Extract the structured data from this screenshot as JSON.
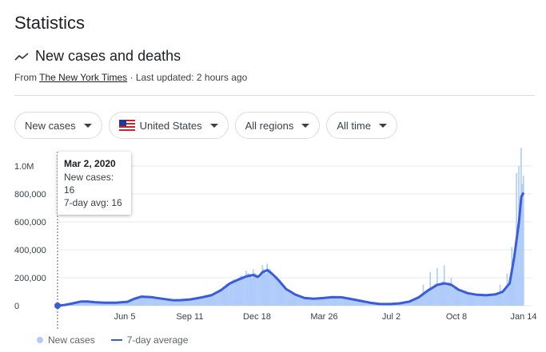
{
  "header": {
    "title": "Statistics"
  },
  "section": {
    "title": "New cases and deaths",
    "source_prefix": "From ",
    "source_name": "The New York Times",
    "updated": " · Last updated: 2 hours ago"
  },
  "filters": {
    "metric": "New cases",
    "country": "United States",
    "regions": "All regions",
    "time": "All time"
  },
  "tooltip": {
    "date": "Mar 2, 2020",
    "new_cases": "New cases: 16",
    "avg": "7-day avg: 16"
  },
  "legend": {
    "bars": "New cases",
    "line": "7-day average"
  },
  "colors": {
    "bars": "#aecbfa",
    "line": "#3b5bdb",
    "grid": "#e8eaed"
  },
  "chart_data": {
    "type": "bar",
    "title": "",
    "xlabel": "",
    "ylabel": "",
    "ylim": [
      0,
      1000000
    ],
    "y_ticks": [
      "0",
      "200,000",
      "400,000",
      "600,000",
      "800,000",
      "1.0M"
    ],
    "x_ticks": [
      "Jun 5",
      "Sep 11",
      "Dec 18",
      "Mar 26",
      "Jul 2",
      "Oct 8",
      "Jan 14"
    ],
    "series": [
      {
        "name": "7-day average",
        "points": [
          [
            0,
            0
          ],
          [
            3,
            5000
          ],
          [
            6,
            15000
          ],
          [
            10,
            30000
          ],
          [
            13,
            30000
          ],
          [
            16,
            25000
          ],
          [
            20,
            22000
          ],
          [
            25,
            22000
          ],
          [
            30,
            28000
          ],
          [
            33,
            50000
          ],
          [
            36,
            65000
          ],
          [
            40,
            62000
          ],
          [
            45,
            50000
          ],
          [
            50,
            38000
          ],
          [
            53,
            40000
          ],
          [
            57,
            45000
          ],
          [
            62,
            60000
          ],
          [
            66,
            75000
          ],
          [
            70,
            110000
          ],
          [
            74,
            160000
          ],
          [
            78,
            190000
          ],
          [
            81,
            210000
          ],
          [
            84,
            220000
          ],
          [
            86,
            205000
          ],
          [
            88,
            240000
          ],
          [
            90,
            255000
          ],
          [
            92,
            230000
          ],
          [
            95,
            180000
          ],
          [
            98,
            120000
          ],
          [
            102,
            80000
          ],
          [
            106,
            55000
          ],
          [
            110,
            50000
          ],
          [
            114,
            55000
          ],
          [
            118,
            62000
          ],
          [
            122,
            60000
          ],
          [
            126,
            48000
          ],
          [
            130,
            35000
          ],
          [
            134,
            22000
          ],
          [
            138,
            13000
          ],
          [
            143,
            12000
          ],
          [
            147,
            17000
          ],
          [
            151,
            30000
          ],
          [
            155,
            60000
          ],
          [
            159,
            110000
          ],
          [
            163,
            150000
          ],
          [
            166,
            160000
          ],
          [
            169,
            150000
          ],
          [
            172,
            115000
          ],
          [
            176,
            90000
          ],
          [
            180,
            78000
          ],
          [
            184,
            75000
          ],
          [
            188,
            82000
          ],
          [
            191,
            100000
          ],
          [
            194,
            160000
          ],
          [
            196,
            350000
          ],
          [
            198,
            600000
          ],
          [
            199,
            780000
          ],
          [
            200,
            810000
          ]
        ]
      },
      {
        "name": "New cases",
        "spikes": [
          [
            75,
            180000
          ],
          [
            78,
            200000
          ],
          [
            81,
            250000
          ],
          [
            84,
            260000
          ],
          [
            88,
            290000
          ],
          [
            90,
            300000
          ],
          [
            157,
            150000
          ],
          [
            160,
            240000
          ],
          [
            163,
            270000
          ],
          [
            166,
            290000
          ],
          [
            169,
            200000
          ],
          [
            190,
            150000
          ],
          [
            193,
            230000
          ],
          [
            195,
            420000
          ],
          [
            197,
            950000
          ],
          [
            198,
            1000000
          ],
          [
            199,
            1130000
          ],
          [
            200,
            930000
          ]
        ]
      }
    ]
  }
}
